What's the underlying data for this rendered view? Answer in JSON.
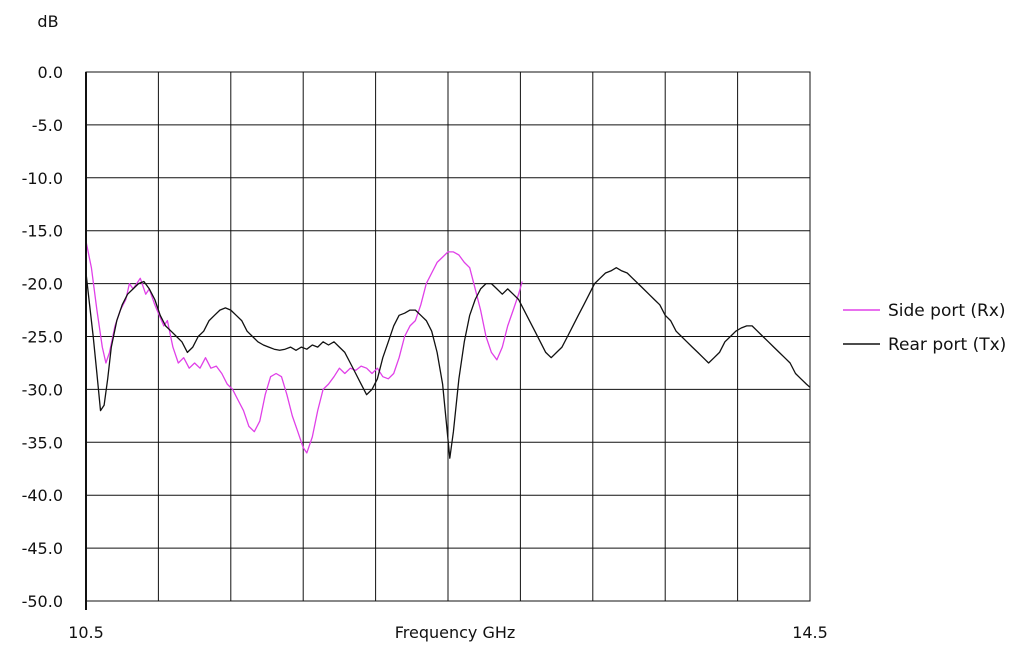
{
  "chart_data": {
    "type": "line",
    "title": "",
    "xlabel": "Frequency GHz",
    "ylabel": "dB",
    "xlim": [
      10.5,
      14.5
    ],
    "ylim": [
      -50,
      0
    ],
    "x_tick_labels": [
      "10.5",
      "14.5"
    ],
    "y_ticks": [
      0,
      -5,
      -10,
      -15,
      -20,
      -25,
      -30,
      -35,
      -40,
      -45,
      -50
    ],
    "y_tick_labels": [
      "0.0",
      "-5.0",
      "-10.0",
      "-15.0",
      "-20.0",
      "-25.0",
      "-30.0",
      "-35.0",
      "-40.0",
      "-45.0",
      "-50.0"
    ],
    "x_grid_divisions": 10,
    "grid": true,
    "legend_position": "right",
    "series": [
      {
        "name": "Side port (Rx)",
        "color": "#e040e8",
        "points": [
          [
            10.5,
            -16.0
          ],
          [
            10.53,
            -18.5
          ],
          [
            10.56,
            -22.5
          ],
          [
            10.59,
            -26.0
          ],
          [
            10.61,
            -27.5
          ],
          [
            10.63,
            -26.5
          ],
          [
            10.66,
            -24.0
          ],
          [
            10.69,
            -22.5
          ],
          [
            10.72,
            -21.5
          ],
          [
            10.74,
            -20.0
          ],
          [
            10.76,
            -20.5
          ],
          [
            10.78,
            -20.0
          ],
          [
            10.8,
            -19.5
          ],
          [
            10.83,
            -21.0
          ],
          [
            10.85,
            -20.5
          ],
          [
            10.88,
            -22.0
          ],
          [
            10.9,
            -22.8
          ],
          [
            10.93,
            -24.0
          ],
          [
            10.95,
            -23.5
          ],
          [
            10.98,
            -26.0
          ],
          [
            11.01,
            -27.5
          ],
          [
            11.04,
            -27.0
          ],
          [
            11.07,
            -28.0
          ],
          [
            11.1,
            -27.5
          ],
          [
            11.13,
            -28.0
          ],
          [
            11.16,
            -27.0
          ],
          [
            11.19,
            -28.0
          ],
          [
            11.22,
            -27.8
          ],
          [
            11.25,
            -28.5
          ],
          [
            11.28,
            -29.5
          ],
          [
            11.31,
            -30.0
          ],
          [
            11.34,
            -31.0
          ],
          [
            11.37,
            -32.0
          ],
          [
            11.4,
            -33.5
          ],
          [
            11.43,
            -34.0
          ],
          [
            11.46,
            -33.0
          ],
          [
            11.49,
            -30.5
          ],
          [
            11.52,
            -28.8
          ],
          [
            11.55,
            -28.5
          ],
          [
            11.58,
            -28.8
          ],
          [
            11.61,
            -30.5
          ],
          [
            11.64,
            -32.5
          ],
          [
            11.67,
            -34.0
          ],
          [
            11.7,
            -35.5
          ],
          [
            11.72,
            -36.0
          ],
          [
            11.75,
            -34.5
          ],
          [
            11.78,
            -32.0
          ],
          [
            11.81,
            -30.0
          ],
          [
            11.84,
            -29.5
          ],
          [
            11.87,
            -28.8
          ],
          [
            11.9,
            -28.0
          ],
          [
            11.93,
            -28.5
          ],
          [
            11.96,
            -28.0
          ],
          [
            11.99,
            -28.2
          ],
          [
            12.02,
            -27.8
          ],
          [
            12.05,
            -28.0
          ],
          [
            12.08,
            -28.5
          ],
          [
            12.11,
            -28.0
          ],
          [
            12.14,
            -28.8
          ],
          [
            12.17,
            -29.0
          ],
          [
            12.2,
            -28.5
          ],
          [
            12.23,
            -27.0
          ],
          [
            12.26,
            -25.0
          ],
          [
            12.29,
            -24.0
          ],
          [
            12.32,
            -23.5
          ],
          [
            12.35,
            -22.0
          ],
          [
            12.38,
            -20.0
          ],
          [
            12.41,
            -19.0
          ],
          [
            12.44,
            -18.0
          ],
          [
            12.47,
            -17.5
          ],
          [
            12.5,
            -17.0
          ],
          [
            12.53,
            -17.0
          ],
          [
            12.56,
            -17.3
          ],
          [
            12.59,
            -18.0
          ],
          [
            12.62,
            -18.5
          ],
          [
            12.65,
            -20.5
          ],
          [
            12.68,
            -22.5
          ],
          [
            12.71,
            -25.0
          ],
          [
            12.74,
            -26.5
          ],
          [
            12.77,
            -27.2
          ],
          [
            12.8,
            -26.0
          ],
          [
            12.83,
            -24.0
          ],
          [
            12.86,
            -22.5
          ],
          [
            12.89,
            -21.0
          ],
          [
            12.91,
            -19.8
          ]
        ]
      },
      {
        "name": "Rear port (Tx)",
        "color": "#111111",
        "points": [
          [
            10.5,
            -19.0
          ],
          [
            10.52,
            -22.0
          ],
          [
            10.54,
            -25.0
          ],
          [
            10.56,
            -28.5
          ],
          [
            10.58,
            -32.0
          ],
          [
            10.6,
            -31.5
          ],
          [
            10.62,
            -29.0
          ],
          [
            10.64,
            -26.0
          ],
          [
            10.67,
            -23.5
          ],
          [
            10.7,
            -22.0
          ],
          [
            10.73,
            -21.0
          ],
          [
            10.76,
            -20.5
          ],
          [
            10.79,
            -20.0
          ],
          [
            10.82,
            -19.8
          ],
          [
            10.85,
            -20.5
          ],
          [
            10.88,
            -21.5
          ],
          [
            10.91,
            -23.0
          ],
          [
            10.94,
            -24.0
          ],
          [
            10.97,
            -24.5
          ],
          [
            11.0,
            -25.0
          ],
          [
            11.03,
            -25.5
          ],
          [
            11.06,
            -26.5
          ],
          [
            11.09,
            -26.0
          ],
          [
            11.12,
            -25.0
          ],
          [
            11.15,
            -24.5
          ],
          [
            11.18,
            -23.5
          ],
          [
            11.21,
            -23.0
          ],
          [
            11.24,
            -22.5
          ],
          [
            11.27,
            -22.3
          ],
          [
            11.3,
            -22.5
          ],
          [
            11.33,
            -23.0
          ],
          [
            11.36,
            -23.5
          ],
          [
            11.39,
            -24.5
          ],
          [
            11.42,
            -25.0
          ],
          [
            11.45,
            -25.5
          ],
          [
            11.48,
            -25.8
          ],
          [
            11.51,
            -26.0
          ],
          [
            11.54,
            -26.2
          ],
          [
            11.57,
            -26.3
          ],
          [
            11.6,
            -26.2
          ],
          [
            11.63,
            -26.0
          ],
          [
            11.66,
            -26.3
          ],
          [
            11.69,
            -26.0
          ],
          [
            11.72,
            -26.2
          ],
          [
            11.75,
            -25.8
          ],
          [
            11.78,
            -26.0
          ],
          [
            11.81,
            -25.5
          ],
          [
            11.84,
            -25.8
          ],
          [
            11.87,
            -25.5
          ],
          [
            11.9,
            -26.0
          ],
          [
            11.93,
            -26.5
          ],
          [
            11.96,
            -27.5
          ],
          [
            11.99,
            -28.5
          ],
          [
            12.02,
            -29.5
          ],
          [
            12.05,
            -30.5
          ],
          [
            12.08,
            -30.0
          ],
          [
            12.11,
            -29.0
          ],
          [
            12.14,
            -27.0
          ],
          [
            12.17,
            -25.5
          ],
          [
            12.2,
            -24.0
          ],
          [
            12.23,
            -23.0
          ],
          [
            12.26,
            -22.8
          ],
          [
            12.29,
            -22.5
          ],
          [
            12.32,
            -22.5
          ],
          [
            12.35,
            -23.0
          ],
          [
            12.38,
            -23.5
          ],
          [
            12.41,
            -24.5
          ],
          [
            12.44,
            -26.5
          ],
          [
            12.47,
            -29.5
          ],
          [
            12.49,
            -33.0
          ],
          [
            12.51,
            -36.5
          ],
          [
            12.53,
            -34.0
          ],
          [
            12.56,
            -29.0
          ],
          [
            12.59,
            -25.5
          ],
          [
            12.62,
            -23.0
          ],
          [
            12.65,
            -21.5
          ],
          [
            12.68,
            -20.5
          ],
          [
            12.71,
            -20.0
          ],
          [
            12.74,
            -20.0
          ],
          [
            12.77,
            -20.5
          ],
          [
            12.8,
            -21.0
          ],
          [
            12.83,
            -20.5
          ],
          [
            12.86,
            -21.0
          ],
          [
            12.89,
            -21.5
          ],
          [
            12.92,
            -22.5
          ],
          [
            12.95,
            -23.5
          ],
          [
            12.98,
            -24.5
          ],
          [
            13.01,
            -25.5
          ],
          [
            13.04,
            -26.5
          ],
          [
            13.07,
            -27.0
          ],
          [
            13.1,
            -26.5
          ],
          [
            13.13,
            -26.0
          ],
          [
            13.16,
            -25.0
          ],
          [
            13.19,
            -24.0
          ],
          [
            13.22,
            -23.0
          ],
          [
            13.25,
            -22.0
          ],
          [
            13.28,
            -21.0
          ],
          [
            13.31,
            -20.0
          ],
          [
            13.34,
            -19.5
          ],
          [
            13.37,
            -19.0
          ],
          [
            13.4,
            -18.8
          ],
          [
            13.43,
            -18.5
          ],
          [
            13.46,
            -18.8
          ],
          [
            13.49,
            -19.0
          ],
          [
            13.52,
            -19.5
          ],
          [
            13.55,
            -20.0
          ],
          [
            13.58,
            -20.5
          ],
          [
            13.61,
            -21.0
          ],
          [
            13.64,
            -21.5
          ],
          [
            13.67,
            -22.0
          ],
          [
            13.7,
            -23.0
          ],
          [
            13.73,
            -23.5
          ],
          [
            13.76,
            -24.5
          ],
          [
            13.79,
            -25.0
          ],
          [
            13.82,
            -25.5
          ],
          [
            13.85,
            -26.0
          ],
          [
            13.88,
            -26.5
          ],
          [
            13.91,
            -27.0
          ],
          [
            13.94,
            -27.5
          ],
          [
            13.97,
            -27.0
          ],
          [
            14.0,
            -26.5
          ],
          [
            14.03,
            -25.5
          ],
          [
            14.06,
            -25.0
          ],
          [
            14.09,
            -24.5
          ],
          [
            14.12,
            -24.2
          ],
          [
            14.15,
            -24.0
          ],
          [
            14.18,
            -24.0
          ],
          [
            14.21,
            -24.5
          ],
          [
            14.24,
            -25.0
          ],
          [
            14.27,
            -25.5
          ],
          [
            14.3,
            -26.0
          ],
          [
            14.33,
            -26.5
          ],
          [
            14.36,
            -27.0
          ],
          [
            14.39,
            -27.5
          ],
          [
            14.42,
            -28.5
          ],
          [
            14.45,
            -29.0
          ],
          [
            14.48,
            -29.5
          ],
          [
            14.5,
            -29.8
          ]
        ]
      }
    ]
  }
}
